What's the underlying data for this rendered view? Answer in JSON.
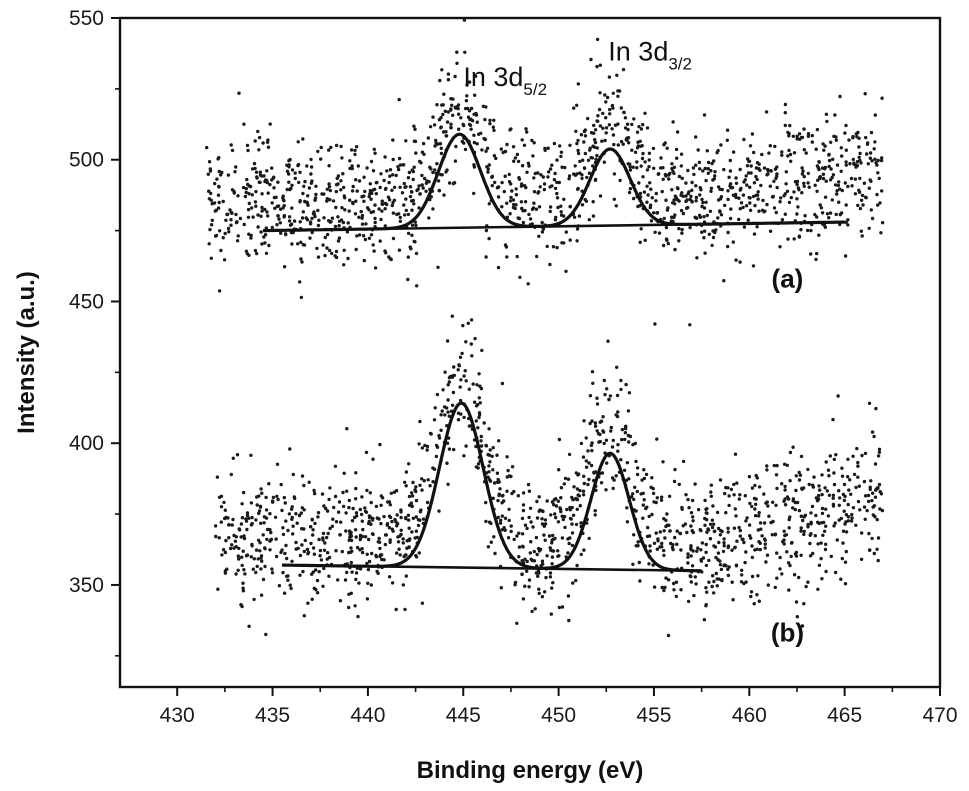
{
  "chart_data": {
    "type": "scatter",
    "xlabel": "Binding energy (eV)",
    "ylabel": "Intensity (a.u.)",
    "xlim": [
      427,
      470
    ],
    "ylim": [
      314,
      550
    ],
    "x_ticks": [
      430,
      435,
      440,
      445,
      450,
      455,
      460,
      465,
      470
    ],
    "y_ticks": [
      350,
      400,
      450,
      500,
      550
    ],
    "grid": false,
    "colors": {
      "points": "#1a1a1a",
      "fit": "#111111",
      "axis": "#111111"
    },
    "annotations": [
      {
        "id": "in-3d52",
        "base": "In 3d",
        "sub": "5/2",
        "x": 447.2,
        "y": 526
      },
      {
        "id": "in-3d32",
        "base": "In 3d",
        "sub": "3/2",
        "x": 454.8,
        "y": 535
      }
    ],
    "panel_labels": [
      {
        "id": "panel-a",
        "text": "(a)",
        "x": 462.0,
        "y": 455
      },
      {
        "id": "panel-b",
        "text": "(b)",
        "x": 462.0,
        "y": 330
      }
    ],
    "series": [
      {
        "panel": "a",
        "x_range": [
          431.5,
          467
        ],
        "noise_band": 15,
        "baseline": {
          "x": [
            434.5,
            465
          ],
          "y": [
            475,
            478
          ]
        },
        "peaks": [
          {
            "center": 444.8,
            "height": 33,
            "sigma": 1.1
          },
          {
            "center": 452.7,
            "height": 27,
            "sigma": 1.05
          }
        ],
        "rise": {
          "x": [
            459,
            467
          ],
          "amount": 10
        }
      },
      {
        "panel": "b",
        "x_range": [
          432,
          467
        ],
        "noise_band": 16,
        "baseline": {
          "x": [
            435.5,
            457.5
          ],
          "y": [
            357,
            355
          ]
        },
        "peaks": [
          {
            "center": 444.9,
            "height": 58,
            "sigma": 1.15
          },
          {
            "center": 452.7,
            "height": 41,
            "sigma": 1.0
          }
        ],
        "rise": {
          "x": [
            458,
            467
          ],
          "amount": 18
        }
      }
    ]
  }
}
